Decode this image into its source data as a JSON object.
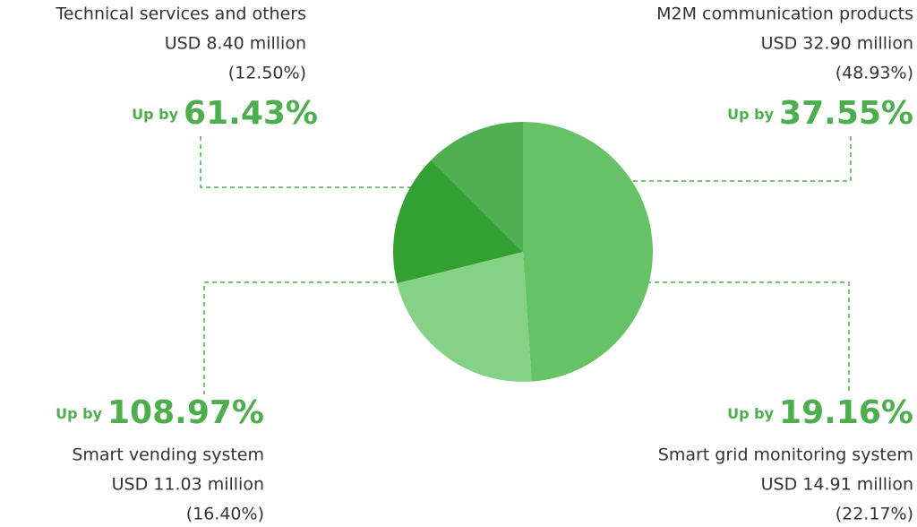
{
  "chart_data": {
    "type": "pie",
    "categories": [
      "M2M communication products",
      "Smart grid monitoring system",
      "Smart vending system",
      "Technical services and others"
    ],
    "values": [
      48.93,
      22.17,
      16.4,
      12.5
    ],
    "value_labels": [
      "(48.93%)",
      "(22.17%)",
      "(16.40%)",
      "(12.50%)"
    ],
    "amounts": [
      32.9,
      14.91,
      11.03,
      8.4
    ],
    "amount_labels": [
      "USD 32.90 million",
      "USD 14.91 million",
      "USD 11.03 million",
      "USD 8.40 million"
    ],
    "growth_prefix": "Up by",
    "growth": [
      37.55,
      19.16,
      108.97,
      61.43
    ],
    "growth_labels": [
      "37.55%",
      "19.16%",
      "108.97%",
      "61.43%"
    ],
    "colors": [
      "#66c266",
      "#85d185",
      "#33a033",
      "#4fae4f"
    ]
  }
}
